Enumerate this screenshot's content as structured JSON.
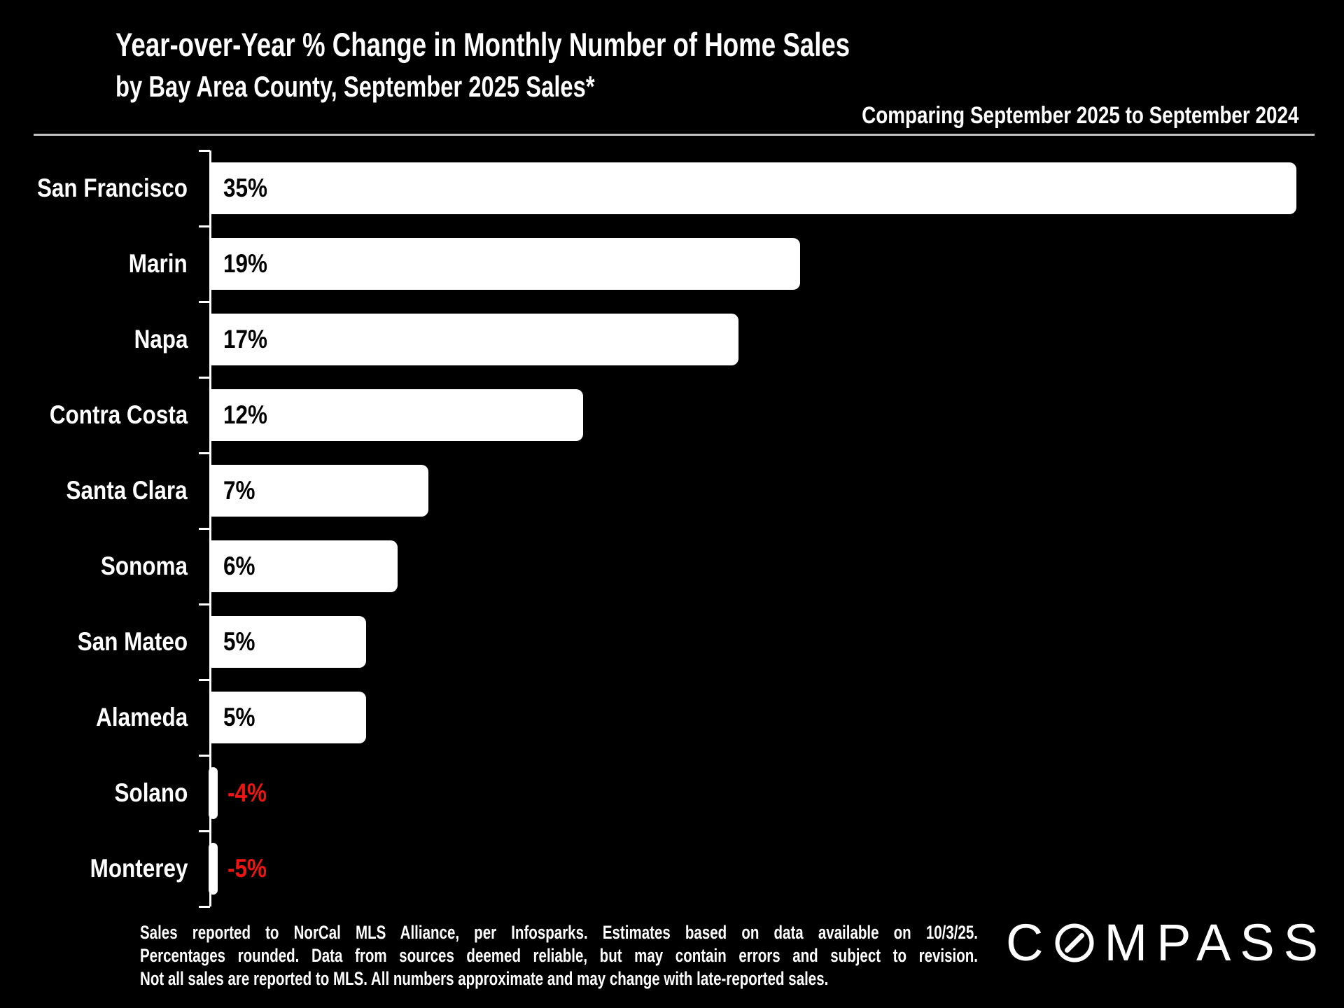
{
  "header": {
    "title_line1": "Year-over-Year % Change in Monthly Number of Home Sales",
    "title_line2": "by Bay Area County, September 2025 Sales*",
    "comparison_note": "Comparing September 2025 to September 2024"
  },
  "chart_data": {
    "type": "bar",
    "orientation": "horizontal",
    "title": "Year-over-Year % Change in Monthly Number of Home Sales by Bay Area County, September 2025 Sales",
    "categories": [
      "San Francisco",
      "Marin",
      "Napa",
      "Contra Costa",
      "Santa Clara",
      "Sonoma",
      "San Mateo",
      "Alameda",
      "Solano",
      "Monterey"
    ],
    "values": [
      35,
      19,
      17,
      12,
      7,
      6,
      5,
      5,
      -4,
      -5
    ],
    "value_labels": [
      "35%",
      "19%",
      "17%",
      "12%",
      "7%",
      "6%",
      "5%",
      "5%",
      "-4%",
      "-5%"
    ],
    "xlim": [
      0,
      35
    ],
    "grid": false,
    "legend": false,
    "colors": {
      "background": "#000000",
      "bar_fill": "#ffffff",
      "positive_value_label": "#000000",
      "negative_value_label": "#ed1414",
      "axis": "#ffffff",
      "category_label": "#ffffff"
    }
  },
  "footer": {
    "disclaimer_lines": [
      "Sales reported to NorCal MLS Alliance, per Infosparks. Estimates based on data available on 10/3/25.",
      "Percentages rounded. Data from sources deemed reliable, but may contain errors and subject to revision.",
      "Not all sales are reported to MLS. All numbers approximate and may change with late-reported sales."
    ],
    "brand": "COMPASS",
    "brand_prefix": "C",
    "brand_suffix": "MPASS"
  }
}
